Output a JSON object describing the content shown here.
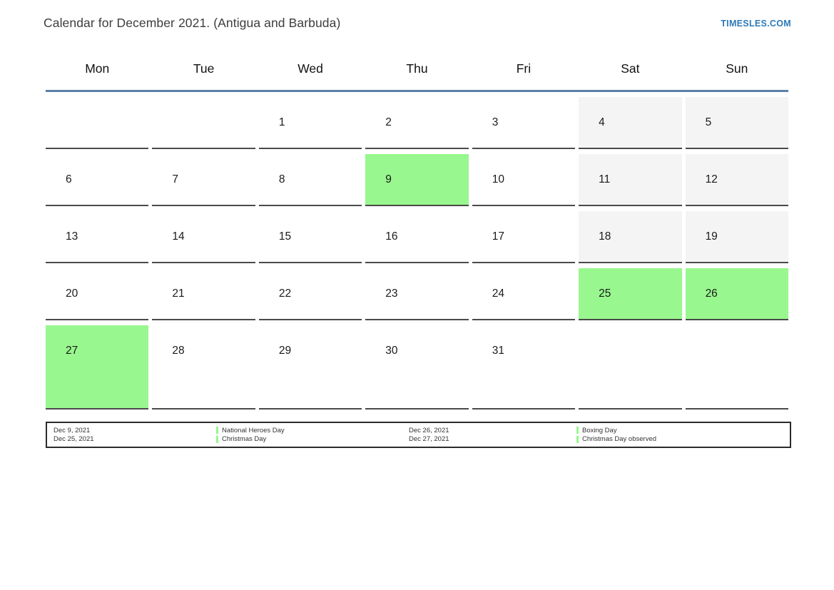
{
  "header": {
    "title": "Calendar for December 2021. (Antigua and Barbuda)",
    "site_link": "TIMESLES.COM"
  },
  "calendar": {
    "weekdays": [
      "Mon",
      "Tue",
      "Wed",
      "Thu",
      "Fri",
      "Sat",
      "Sun"
    ],
    "weeks": [
      [
        {
          "day": "",
          "type": "empty"
        },
        {
          "day": "",
          "type": "empty"
        },
        {
          "day": "1",
          "type": "workday"
        },
        {
          "day": "2",
          "type": "workday"
        },
        {
          "day": "3",
          "type": "workday"
        },
        {
          "day": "4",
          "type": "weekend"
        },
        {
          "day": "5",
          "type": "weekend"
        }
      ],
      [
        {
          "day": "6",
          "type": "workday"
        },
        {
          "day": "7",
          "type": "workday"
        },
        {
          "day": "8",
          "type": "workday"
        },
        {
          "day": "9",
          "type": "holiday"
        },
        {
          "day": "10",
          "type": "workday"
        },
        {
          "day": "11",
          "type": "weekend"
        },
        {
          "day": "12",
          "type": "weekend"
        }
      ],
      [
        {
          "day": "13",
          "type": "workday"
        },
        {
          "day": "14",
          "type": "workday"
        },
        {
          "day": "15",
          "type": "workday"
        },
        {
          "day": "16",
          "type": "workday"
        },
        {
          "day": "17",
          "type": "workday"
        },
        {
          "day": "18",
          "type": "weekend"
        },
        {
          "day": "19",
          "type": "weekend"
        }
      ],
      [
        {
          "day": "20",
          "type": "workday"
        },
        {
          "day": "21",
          "type": "workday"
        },
        {
          "day": "22",
          "type": "workday"
        },
        {
          "day": "23",
          "type": "workday"
        },
        {
          "day": "24",
          "type": "workday"
        },
        {
          "day": "25",
          "type": "holiday"
        },
        {
          "day": "26",
          "type": "holiday"
        }
      ],
      [
        {
          "day": "27",
          "type": "holiday"
        },
        {
          "day": "28",
          "type": "workday"
        },
        {
          "day": "29",
          "type": "workday"
        },
        {
          "day": "30",
          "type": "workday"
        },
        {
          "day": "31",
          "type": "workday"
        },
        {
          "day": "",
          "type": "empty"
        },
        {
          "day": "",
          "type": "empty"
        }
      ]
    ]
  },
  "legend": {
    "groups": [
      {
        "dates": [
          "Dec 9, 2021",
          "Dec 25, 2021"
        ],
        "events": [
          "National Heroes Day",
          "Christmas Day"
        ]
      },
      {
        "dates": [
          "Dec 26, 2021",
          "Dec 27, 2021"
        ],
        "events": [
          "Boxing Day",
          "Christmas Day observed"
        ]
      }
    ]
  },
  "colors": {
    "holiday_green": "#98f78e",
    "weekend_gray": "#f4f4f4",
    "header_rule_blue": "#5b80a5",
    "link_blue": "#2d7ab8",
    "cell_border": "#4a4a4a",
    "legend_border": "#2b2b2b"
  }
}
